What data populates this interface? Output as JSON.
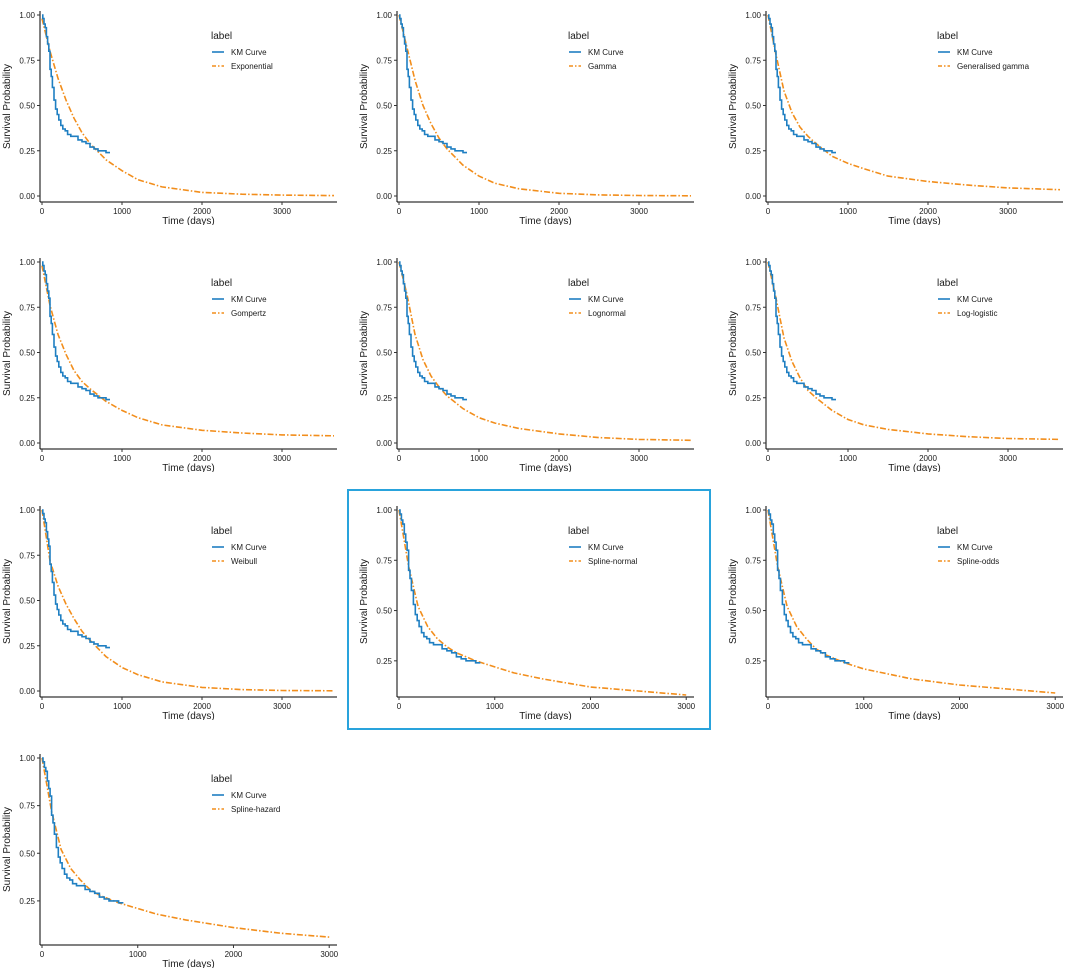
{
  "accent_color": "#29a3dc",
  "km_color": "#1f7fc2",
  "fit_color": "#f28e1c",
  "legend_title": "label",
  "km_label": "KM Curve",
  "ylabel": "Survival Probability",
  "xlabel": "Time (days)",
  "km_curve": {
    "t": [
      0,
      10,
      25,
      40,
      55,
      70,
      85,
      100,
      115,
      130,
      150,
      170,
      190,
      210,
      235,
      260,
      290,
      320,
      360,
      400,
      450,
      500,
      550,
      600,
      650,
      700,
      800
    ],
    "s": [
      1.0,
      0.98,
      0.95,
      0.93,
      0.88,
      0.84,
      0.8,
      0.7,
      0.66,
      0.6,
      0.53,
      0.48,
      0.45,
      0.42,
      0.39,
      0.37,
      0.36,
      0.34,
      0.33,
      0.33,
      0.31,
      0.3,
      0.29,
      0.27,
      0.26,
      0.25,
      0.24
    ]
  },
  "chart_data": [
    {
      "type": "line",
      "highlighted": false,
      "fit_label": "Exponential",
      "xlim": [
        0,
        3650
      ],
      "ylim": [
        0,
        1
      ],
      "x_ticks": [
        0,
        1000,
        2000,
        3000
      ],
      "y_ticks": [
        "0.00",
        "0.25",
        "0.50",
        "0.75",
        "1.00"
      ],
      "y_tick_values": [
        0,
        0.25,
        0.5,
        0.75,
        1.0
      ],
      "fit": {
        "t": [
          0,
          100,
          200,
          300,
          400,
          500,
          600,
          800,
          1000,
          1200,
          1500,
          2000,
          2500,
          3000,
          3650
        ],
        "s": [
          0.98,
          0.8,
          0.65,
          0.53,
          0.43,
          0.35,
          0.29,
          0.2,
          0.14,
          0.09,
          0.05,
          0.02,
          0.01,
          0.005,
          0.002
        ]
      }
    },
    {
      "type": "line",
      "highlighted": false,
      "fit_label": "Gamma",
      "xlim": [
        0,
        3650
      ],
      "ylim": [
        0,
        1
      ],
      "x_ticks": [
        0,
        1000,
        2000,
        3000
      ],
      "y_ticks": [
        "0.00",
        "0.25",
        "0.50",
        "0.75",
        "1.00"
      ],
      "y_tick_values": [
        0,
        0.25,
        0.5,
        0.75,
        1.0
      ],
      "fit": {
        "t": [
          0,
          100,
          200,
          300,
          400,
          500,
          600,
          800,
          1000,
          1200,
          1500,
          2000,
          2500,
          3000,
          3650
        ],
        "s": [
          1.0,
          0.82,
          0.64,
          0.5,
          0.4,
          0.32,
          0.26,
          0.17,
          0.11,
          0.07,
          0.04,
          0.015,
          0.006,
          0.003,
          0.001
        ]
      }
    },
    {
      "type": "line",
      "highlighted": false,
      "fit_label": "Generalised gamma",
      "xlim": [
        0,
        3650
      ],
      "ylim": [
        0,
        1
      ],
      "x_ticks": [
        0,
        1000,
        2000,
        3000
      ],
      "y_ticks": [
        "0.00",
        "0.25",
        "0.50",
        "0.75",
        "1.00"
      ],
      "y_tick_values": [
        0,
        0.25,
        0.5,
        0.75,
        1.0
      ],
      "fit": {
        "t": [
          0,
          100,
          200,
          300,
          400,
          500,
          600,
          800,
          1000,
          1200,
          1500,
          2000,
          2500,
          3000,
          3650
        ],
        "s": [
          1.0,
          0.78,
          0.58,
          0.46,
          0.38,
          0.33,
          0.29,
          0.22,
          0.18,
          0.15,
          0.11,
          0.08,
          0.06,
          0.045,
          0.035
        ]
      }
    },
    {
      "type": "line",
      "highlighted": false,
      "fit_label": "Gompertz",
      "xlim": [
        0,
        3650
      ],
      "ylim": [
        0,
        1
      ],
      "x_ticks": [
        0,
        1000,
        2000,
        3000
      ],
      "y_ticks": [
        "0.00",
        "0.25",
        "0.50",
        "0.75",
        "1.00"
      ],
      "y_tick_values": [
        0,
        0.25,
        0.5,
        0.75,
        1.0
      ],
      "fit": {
        "t": [
          0,
          100,
          200,
          300,
          400,
          500,
          600,
          800,
          1000,
          1200,
          1500,
          2000,
          2500,
          3000,
          3650
        ],
        "s": [
          0.98,
          0.76,
          0.6,
          0.49,
          0.4,
          0.34,
          0.3,
          0.23,
          0.18,
          0.14,
          0.1,
          0.07,
          0.055,
          0.045,
          0.04
        ]
      }
    },
    {
      "type": "line",
      "highlighted": false,
      "fit_label": "Lognormal",
      "xlim": [
        0,
        3650
      ],
      "ylim": [
        0,
        1
      ],
      "x_ticks": [
        0,
        1000,
        2000,
        3000
      ],
      "y_ticks": [
        "0.00",
        "0.25",
        "0.50",
        "0.75",
        "1.00"
      ],
      "y_tick_values": [
        0,
        0.25,
        0.5,
        0.75,
        1.0
      ],
      "fit": {
        "t": [
          0,
          100,
          200,
          300,
          400,
          500,
          600,
          800,
          1000,
          1200,
          1500,
          2000,
          2500,
          3000,
          3650
        ],
        "s": [
          1.0,
          0.82,
          0.6,
          0.46,
          0.37,
          0.31,
          0.26,
          0.19,
          0.14,
          0.11,
          0.08,
          0.05,
          0.03,
          0.02,
          0.015
        ]
      }
    },
    {
      "type": "line",
      "highlighted": false,
      "fit_label": "Log-logistic",
      "xlim": [
        0,
        3650
      ],
      "ylim": [
        0,
        1
      ],
      "x_ticks": [
        0,
        1000,
        2000,
        3000
      ],
      "y_ticks": [
        "0.00",
        "0.25",
        "0.50",
        "0.75",
        "1.00"
      ],
      "y_tick_values": [
        0,
        0.25,
        0.5,
        0.75,
        1.0
      ],
      "fit": {
        "t": [
          0,
          100,
          200,
          300,
          400,
          500,
          600,
          800,
          1000,
          1200,
          1500,
          2000,
          2500,
          3000,
          3650
        ],
        "s": [
          1.0,
          0.8,
          0.58,
          0.45,
          0.36,
          0.29,
          0.25,
          0.18,
          0.13,
          0.1,
          0.075,
          0.05,
          0.035,
          0.025,
          0.02
        ]
      }
    },
    {
      "type": "line",
      "highlighted": false,
      "fit_label": "Weibull",
      "xlim": [
        0,
        3650
      ],
      "ylim": [
        0,
        1
      ],
      "x_ticks": [
        0,
        1000,
        2000,
        3000
      ],
      "y_ticks": [
        "0.00",
        "0.25",
        "0.50",
        "0.75",
        "1.00"
      ],
      "y_tick_values": [
        0,
        0.25,
        0.5,
        0.75,
        1.0
      ],
      "fit": {
        "t": [
          0,
          100,
          200,
          300,
          400,
          500,
          600,
          800,
          1000,
          1200,
          1500,
          2000,
          2500,
          3000,
          3650
        ],
        "s": [
          1.0,
          0.72,
          0.58,
          0.48,
          0.4,
          0.33,
          0.28,
          0.19,
          0.13,
          0.09,
          0.05,
          0.02,
          0.008,
          0.003,
          0.001
        ]
      }
    },
    {
      "type": "line",
      "highlighted": true,
      "fit_label": "Spline-normal",
      "xlim": [
        0,
        3050
      ],
      "ylim": [
        0.1,
        1
      ],
      "x_ticks": [
        0,
        1000,
        2000,
        3000
      ],
      "y_ticks": [
        "0.25",
        "0.50",
        "0.75",
        "1.00"
      ],
      "y_tick_values": [
        0.25,
        0.5,
        0.75,
        1.0
      ],
      "fit": {
        "t": [
          0,
          100,
          200,
          300,
          400,
          500,
          600,
          800,
          1000,
          1200,
          1500,
          2000,
          2500,
          3000
        ],
        "s": [
          1.0,
          0.72,
          0.52,
          0.42,
          0.36,
          0.32,
          0.29,
          0.25,
          0.22,
          0.19,
          0.16,
          0.12,
          0.1,
          0.08
        ]
      }
    },
    {
      "type": "line",
      "highlighted": false,
      "fit_label": "Spline-odds",
      "xlim": [
        0,
        3050
      ],
      "ylim": [
        0.1,
        1
      ],
      "x_ticks": [
        0,
        1000,
        2000,
        3000
      ],
      "y_ticks": [
        "0.25",
        "0.50",
        "0.75",
        "1.00"
      ],
      "y_tick_values": [
        0.25,
        0.5,
        0.75,
        1.0
      ],
      "fit": {
        "t": [
          0,
          100,
          200,
          300,
          400,
          500,
          600,
          800,
          1000,
          1200,
          1500,
          2000,
          2500,
          3000
        ],
        "s": [
          1.0,
          0.72,
          0.52,
          0.42,
          0.36,
          0.31,
          0.28,
          0.24,
          0.21,
          0.19,
          0.16,
          0.13,
          0.11,
          0.09
        ]
      }
    },
    {
      "type": "line",
      "highlighted": false,
      "fit_label": "Spline-hazard",
      "xlim": [
        0,
        3050
      ],
      "ylim": [
        0.05,
        1
      ],
      "x_ticks": [
        0,
        1000,
        2000,
        3000
      ],
      "y_ticks": [
        "0.25",
        "0.50",
        "0.75",
        "1.00"
      ],
      "y_tick_values": [
        0.25,
        0.5,
        0.75,
        1.0
      ],
      "fit": {
        "t": [
          0,
          100,
          200,
          300,
          400,
          500,
          600,
          800,
          1000,
          1200,
          1500,
          2000,
          2500,
          3000
        ],
        "s": [
          1.0,
          0.72,
          0.52,
          0.42,
          0.36,
          0.31,
          0.28,
          0.24,
          0.21,
          0.18,
          0.15,
          0.11,
          0.08,
          0.06
        ]
      }
    }
  ]
}
